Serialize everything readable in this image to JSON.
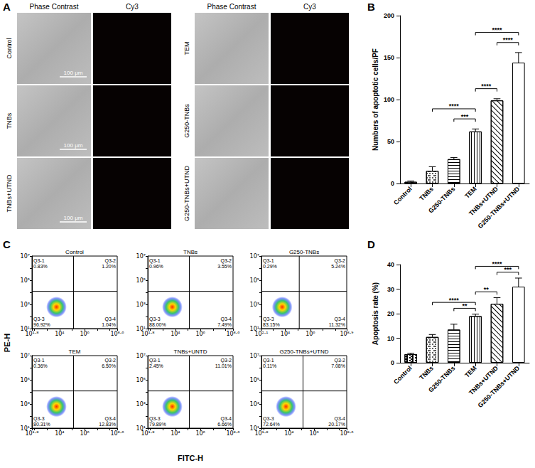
{
  "panel_labels": [
    "A",
    "B",
    "C",
    "D"
  ],
  "images": {
    "headers": [
      "Phase Contrast",
      "Cy3"
    ],
    "groups": [
      [
        "Control",
        "TNBs",
        "TNBs+UTND"
      ],
      [
        "TEM",
        "G250-TNBs",
        "G250-TNBs+UTND"
      ]
    ],
    "scale_bar": "100 μm"
  },
  "chart_data": [
    {
      "type": "bar",
      "ylabel": "Numbers of apoptotic cells/PF",
      "categories": [
        "Control",
        "TNBs",
        "G250-TNBs",
        "TEM",
        "TNBs+UTND",
        "G250-TNBs+UTND"
      ],
      "values": [
        2,
        15,
        29,
        62,
        99,
        144
      ],
      "errors": [
        1,
        5,
        2,
        3,
        2,
        12
      ],
      "color": "#ffffff",
      "ylim": [
        0,
        200
      ],
      "yticks": [
        0,
        50,
        100,
        150,
        200
      ],
      "annotations": [
        {
          "from": "TNBs",
          "to": "TEM",
          "label": "****"
        },
        {
          "from": "G250-TNBs",
          "to": "TEM",
          "label": "***"
        },
        {
          "from": "TEM",
          "to": "TNBs+UTND",
          "label": "****"
        },
        {
          "from": "TNBs+UTND",
          "to": "G250-TNBs+UTND",
          "label": "****"
        },
        {
          "from": "TEM",
          "to": "G250-TNBs+UTND",
          "label": "****"
        }
      ]
    },
    {
      "type": "flow_cytometry",
      "xlabel": "FITC-H",
      "ylabel": "PE-H",
      "log": true,
      "panels": [
        {
          "title": "Control",
          "xlim": [
            63.0957,
            398107170.6
          ],
          "xticks": [
            {
              "value": 63.0957,
              "label": "10¹·⁸"
            },
            {
              "value": 10000,
              "label": "10⁴"
            },
            {
              "value": 1000000,
              "label": "10⁶"
            },
            {
              "value": 398107170.6,
              "label": "10⁸·⁶"
            }
          ],
          "ylim": [
            10,
            10000000
          ],
          "yticks": [
            {
              "value": 10,
              "label": "10¹"
            },
            {
              "value": 1000,
              "label": "10³"
            },
            {
              "value": 100000,
              "label": "10⁵"
            },
            {
              "value": 10000000,
              "label": "10⁷"
            }
          ],
          "gate_x": 130000,
          "gate_y": 12000,
          "quadrants": {
            "names": [
              "Q3-1",
              "Q3-2",
              "Q3-3",
              "Q3-4"
            ],
            "values": [
              0.83,
              1.2,
              96.92,
              1.04
            ],
            "value_labels": [
              "0.83%",
              "1.20%",
              "96.92%",
              "1.04%"
            ]
          }
        },
        {
          "title": "TNBs",
          "xlim": [
            63.0957,
            398107170.6
          ],
          "xticks": [
            {
              "value": 63.0957,
              "label": "10¹·⁸"
            },
            {
              "value": 10000,
              "label": "10⁴"
            },
            {
              "value": 1000000,
              "label": "10⁶"
            },
            {
              "value": 398107170.6,
              "label": "10⁸·⁶"
            }
          ],
          "ylim": [
            10,
            10000000
          ],
          "yticks": [
            {
              "value": 10,
              "label": "10¹"
            },
            {
              "value": 1000,
              "label": "10³"
            },
            {
              "value": 100000,
              "label": "10⁵"
            },
            {
              "value": 10000000,
              "label": "10⁷"
            }
          ],
          "gate_x": 130000,
          "gate_y": 12000,
          "quadrants": {
            "names": [
              "Q3-1",
              "Q3-2",
              "Q3-3",
              "Q3-4"
            ],
            "values": [
              0.96,
              3.55,
              88.0,
              7.49
            ],
            "value_labels": [
              "0.96%",
              "3.55%",
              "88.00%",
              "7.49%"
            ]
          }
        },
        {
          "title": "G250-TNBs",
          "xlim": [
            125.8925,
            794328234.7
          ],
          "xticks": [
            {
              "value": 125.8925,
              "label": "10²·¹"
            },
            {
              "value": 10000,
              "label": "10⁴"
            },
            {
              "value": 1000000,
              "label": "10⁶"
            },
            {
              "value": 794328234.7,
              "label": "10⁸·⁹"
            }
          ],
          "ylim": [
            10,
            10000000
          ],
          "yticks": [
            {
              "value": 10,
              "label": "10¹"
            },
            {
              "value": 1000,
              "label": "10³"
            },
            {
              "value": 100000,
              "label": "10⁵"
            },
            {
              "value": 10000000,
              "label": "10⁷"
            }
          ],
          "gate_x": 130000,
          "gate_y": 12000,
          "quadrants": {
            "names": [
              "Q3-1",
              "Q3-2",
              "Q3-3",
              "Q3-4"
            ],
            "values": [
              0.29,
              5.24,
              83.15,
              11.32
            ],
            "value_labels": [
              "0.29%",
              "5.24%",
              "83.15%",
              "11.32%"
            ]
          }
        },
        {
          "title": "TEM",
          "xlim": [
            63.0957,
            398107170.6
          ],
          "xticks": [
            {
              "value": 63.0957,
              "label": "10¹·⁸"
            },
            {
              "value": 10000,
              "label": "10⁴"
            },
            {
              "value": 1000000,
              "label": "10⁶"
            },
            {
              "value": 398107170.6,
              "label": "10⁸·⁶"
            }
          ],
          "ylim": [
            10,
            10000000
          ],
          "yticks": [
            {
              "value": 10,
              "label": "10¹"
            },
            {
              "value": 1000,
              "label": "10³"
            },
            {
              "value": 100000,
              "label": "10⁵"
            },
            {
              "value": 10000000,
              "label": "10⁷"
            }
          ],
          "gate_x": 130000,
          "gate_y": 12000,
          "quadrants": {
            "names": [
              "Q3-1",
              "Q3-2",
              "Q3-3",
              "Q3-4"
            ],
            "values": [
              0.36,
              6.5,
              80.31,
              12.83
            ],
            "value_labels": [
              "0.36%",
              "6.50%",
              "80.31%",
              "12.83%"
            ]
          }
        },
        {
          "title": "TNBs+UNTD",
          "xlim": [
            63.0957,
            398107170.6
          ],
          "xticks": [
            {
              "value": 63.0957,
              "label": "10¹·⁸"
            },
            {
              "value": 10000,
              "label": "10⁴"
            },
            {
              "value": 1000000,
              "label": "10⁶"
            },
            {
              "value": 398107170.6,
              "label": "10⁸·⁶"
            }
          ],
          "ylim": [
            10,
            10000000
          ],
          "yticks": [
            {
              "value": 10,
              "label": "10¹"
            },
            {
              "value": 1000,
              "label": "10³"
            },
            {
              "value": 100000,
              "label": "10⁵"
            },
            {
              "value": 10000000,
              "label": "10⁷"
            }
          ],
          "gate_x": 130000,
          "gate_y": 12000,
          "quadrants": {
            "names": [
              "Q3-1",
              "Q3-2",
              "Q3-3",
              "Q3-4"
            ],
            "values": [
              2.45,
              11.01,
              79.89,
              6.66
            ],
            "value_labels": [
              "2.45%",
              "11.01%",
              "79.89%",
              "6.66%"
            ]
          }
        },
        {
          "title": "G250-TNBs+UTND",
          "xlim": [
            63.0957,
            398107170.6
          ],
          "xticks": [
            {
              "value": 63.0957,
              "label": "10¹·⁸"
            },
            {
              "value": 10000,
              "label": "10⁴"
            },
            {
              "value": 1000000,
              "label": "10⁶"
            },
            {
              "value": 398107170.6,
              "label": "10⁸·⁶"
            }
          ],
          "ylim": [
            10,
            10000000
          ],
          "yticks": [
            {
              "value": 10,
              "label": "10¹"
            },
            {
              "value": 1000,
              "label": "10³"
            },
            {
              "value": 100000,
              "label": "10⁵"
            },
            {
              "value": 10000000,
              "label": "10⁷"
            }
          ],
          "gate_x": 130000,
          "gate_y": 12000,
          "quadrants": {
            "names": [
              "Q3-1",
              "Q3-2",
              "Q3-3",
              "Q3-4"
            ],
            "values": [
              0.11,
              7.08,
              72.64,
              20.17
            ],
            "value_labels": [
              "0.11%",
              "7.08%",
              "72.64%",
              "20.17%"
            ]
          }
        }
      ]
    },
    {
      "type": "bar",
      "ylabel": "Apoptosis rate (%)",
      "categories": [
        "Control",
        "TNBs",
        "G250-TNBs",
        "TEM",
        "TNBs+UTND",
        "G250-TNBs+UTND"
      ],
      "values": [
        3.5,
        10.5,
        13.5,
        19,
        24,
        31
      ],
      "errors": [
        0.4,
        1,
        2.2,
        0.8,
        2.5,
        3.5
      ],
      "color": "#ffffff",
      "ylim": [
        0,
        40
      ],
      "yticks": [
        0,
        10,
        20,
        30,
        40
      ],
      "annotations": [
        {
          "from": "TNBs",
          "to": "TEM",
          "label": "****"
        },
        {
          "from": "G250-TNBs",
          "to": "TEM",
          "label": "**"
        },
        {
          "from": "TEM",
          "to": "TNBs+UTND",
          "label": "**"
        },
        {
          "from": "TNBs+UTND",
          "to": "G250-TNBs+UTND",
          "label": "***"
        },
        {
          "from": "TEM",
          "to": "G250-TNBs+UTND",
          "label": "****"
        }
      ]
    }
  ]
}
